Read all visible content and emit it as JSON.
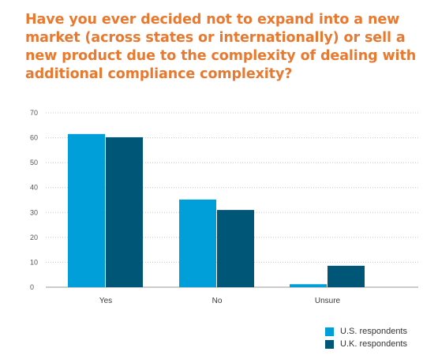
{
  "chart_data": {
    "type": "bar",
    "title": "Have you ever decided not to expand into a new market (across states or internationally) or sell a new product due to the complexity of dealing with additional compliance complexity?",
    "categories": [
      "Yes",
      "No",
      "Unsure"
    ],
    "series": [
      {
        "name": "U.S. respondents",
        "values": [
          61.5,
          35.2,
          1.2
        ],
        "color": "#009FDA"
      },
      {
        "name": "U.K. respondents",
        "values": [
          60.2,
          31.0,
          8.6
        ],
        "color": "#005677"
      }
    ],
    "ylim": [
      0,
      70
    ],
    "yticks": [
      0,
      10,
      20,
      30,
      40,
      50,
      60,
      70
    ],
    "grid": "horizontal dotted",
    "legend_position": "bottom-right",
    "title_color": "#E8792F"
  }
}
